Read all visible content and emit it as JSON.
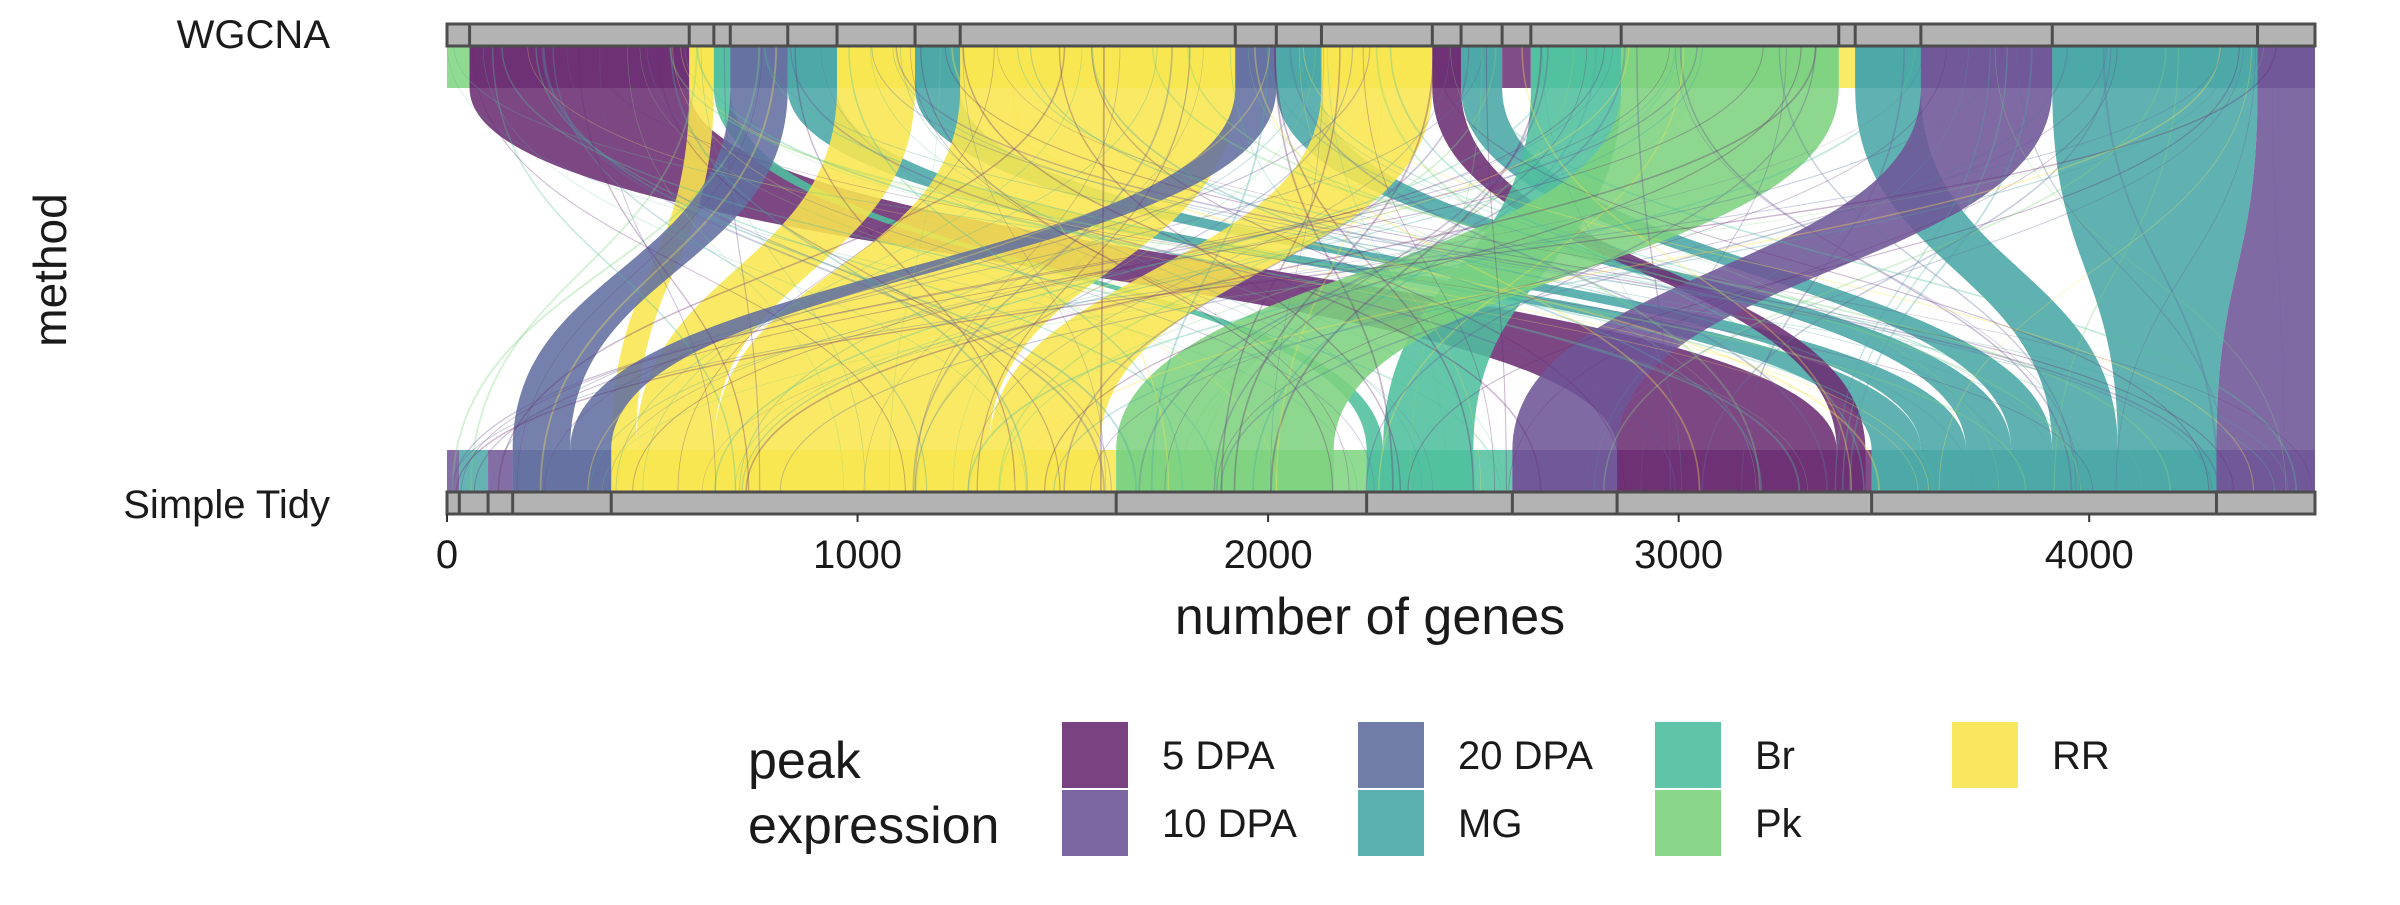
{
  "chart_data": {
    "type": "alluvial",
    "xlabel": "number of genes",
    "ylabel": "method",
    "x_ticks": [
      0,
      1000,
      2000,
      3000,
      4000
    ],
    "xlim": [
      0,
      4550
    ],
    "axes": [
      "WGCNA",
      "Simple Tidy"
    ],
    "legend": {
      "title_lines": [
        "peak",
        "expression"
      ],
      "placement": "bottom",
      "entries": [
        {
          "label": "5 DPA",
          "color": "#6B2E73"
        },
        {
          "label": "10 DPA",
          "color": "#6E5597"
        },
        {
          "label": "20 DPA",
          "color": "#6270A1"
        },
        {
          "label": "MG",
          "color": "#4AA6A6"
        },
        {
          "label": "Br",
          "color": "#4FBF9E"
        },
        {
          "label": "Pk",
          "color": "#7DD37E"
        },
        {
          "label": "RR",
          "color": "#F8E64E"
        }
      ]
    },
    "bottom_bands": [
      {
        "category": "10 DPA",
        "start": 0,
        "end": 30
      },
      {
        "category": "MG",
        "start": 30,
        "end": 100
      },
      {
        "category": "10 DPA",
        "start": 100,
        "end": 160
      },
      {
        "category": "20 DPA",
        "start": 160,
        "end": 400
      },
      {
        "category": "RR",
        "start": 400,
        "end": 1630
      },
      {
        "category": "Pk",
        "start": 1630,
        "end": 2240
      },
      {
        "category": "Br",
        "start": 2240,
        "end": 2595
      },
      {
        "category": "10 DPA",
        "start": 2595,
        "end": 2850
      },
      {
        "category": "5 DPA",
        "start": 2850,
        "end": 3470
      },
      {
        "category": "MG",
        "start": 3470,
        "end": 4310
      },
      {
        "category": "10 DPA",
        "start": 4310,
        "end": 4550
      }
    ],
    "top_bands": [
      {
        "category": "Pk",
        "start": 0,
        "end": 55
      },
      {
        "category": "5 DPA",
        "start": 55,
        "end": 590
      },
      {
        "category": "RR",
        "start": 590,
        "end": 650
      },
      {
        "category": "Br",
        "start": 650,
        "end": 690
      },
      {
        "category": "20 DPA",
        "start": 690,
        "end": 830
      },
      {
        "category": "MG",
        "start": 830,
        "end": 950
      },
      {
        "category": "RR",
        "start": 950,
        "end": 1140
      },
      {
        "category": "MG",
        "start": 1140,
        "end": 1250
      },
      {
        "category": "RR",
        "start": 1250,
        "end": 1920
      },
      {
        "category": "20 DPA",
        "start": 1920,
        "end": 2020
      },
      {
        "category": "MG",
        "start": 2020,
        "end": 2130
      },
      {
        "category": "RR",
        "start": 2130,
        "end": 2400
      },
      {
        "category": "5 DPA",
        "start": 2400,
        "end": 2470
      },
      {
        "category": "MG",
        "start": 2470,
        "end": 2570
      },
      {
        "category": "5 DPA",
        "start": 2570,
        "end": 2640
      },
      {
        "category": "Br",
        "start": 2640,
        "end": 2860
      },
      {
        "category": "Pk",
        "start": 2860,
        "end": 3390
      },
      {
        "category": "RR",
        "start": 3390,
        "end": 3430
      },
      {
        "category": "MG",
        "start": 3430,
        "end": 3590
      },
      {
        "category": "10 DPA",
        "start": 3590,
        "end": 3910
      },
      {
        "category": "MG",
        "start": 3910,
        "end": 4410
      },
      {
        "category": "10 DPA",
        "start": 4410,
        "end": 4550
      }
    ],
    "flows": [
      {
        "category": "5 DPA",
        "top": [
          55,
          590
        ],
        "bottom": [
          2850,
          3385
        ]
      },
      {
        "category": "RR",
        "top": [
          590,
          650
        ],
        "bottom": [
          400,
          460
        ]
      },
      {
        "category": "Br",
        "top": [
          650,
          690
        ],
        "bottom": [
          2240,
          2280
        ]
      },
      {
        "category": "20 DPA",
        "top": [
          690,
          830
        ],
        "bottom": [
          160,
          300
        ]
      },
      {
        "category": "MG",
        "top": [
          830,
          950
        ],
        "bottom": [
          3470,
          3590
        ]
      },
      {
        "category": "RR",
        "top": [
          950,
          1140
        ],
        "bottom": [
          460,
          650
        ]
      },
      {
        "category": "MG",
        "top": [
          1140,
          1250
        ],
        "bottom": [
          3590,
          3700
        ]
      },
      {
        "category": "RR",
        "top": [
          1250,
          1920
        ],
        "bottom": [
          650,
          1320
        ]
      },
      {
        "category": "20 DPA",
        "top": [
          1920,
          2020
        ],
        "bottom": [
          300,
          400
        ]
      },
      {
        "category": "MG",
        "top": [
          2020,
          2130
        ],
        "bottom": [
          3700,
          3810
        ]
      },
      {
        "category": "RR",
        "top": [
          2130,
          2400
        ],
        "bottom": [
          1320,
          1590
        ]
      },
      {
        "category": "5 DPA",
        "top": [
          2400,
          2470
        ],
        "bottom": [
          3385,
          3455
        ]
      },
      {
        "category": "MG",
        "top": [
          2470,
          2570
        ],
        "bottom": [
          3810,
          3910
        ]
      },
      {
        "category": "Br",
        "top": [
          2640,
          2860
        ],
        "bottom": [
          2280,
          2500
        ]
      },
      {
        "category": "Pk",
        "top": [
          2860,
          3390
        ],
        "bottom": [
          1630,
          2160
        ]
      },
      {
        "category": "MG",
        "top": [
          3430,
          3590
        ],
        "bottom": [
          3910,
          4070
        ]
      },
      {
        "category": "10 DPA",
        "top": [
          3590,
          3910
        ],
        "bottom": [
          2595,
          2850
        ]
      },
      {
        "category": "MG",
        "top": [
          3910,
          4410
        ],
        "bottom": [
          4070,
          4310
        ]
      },
      {
        "category": "10 DPA",
        "top": [
          4410,
          4550
        ],
        "bottom": [
          4310,
          4550
        ]
      }
    ]
  }
}
